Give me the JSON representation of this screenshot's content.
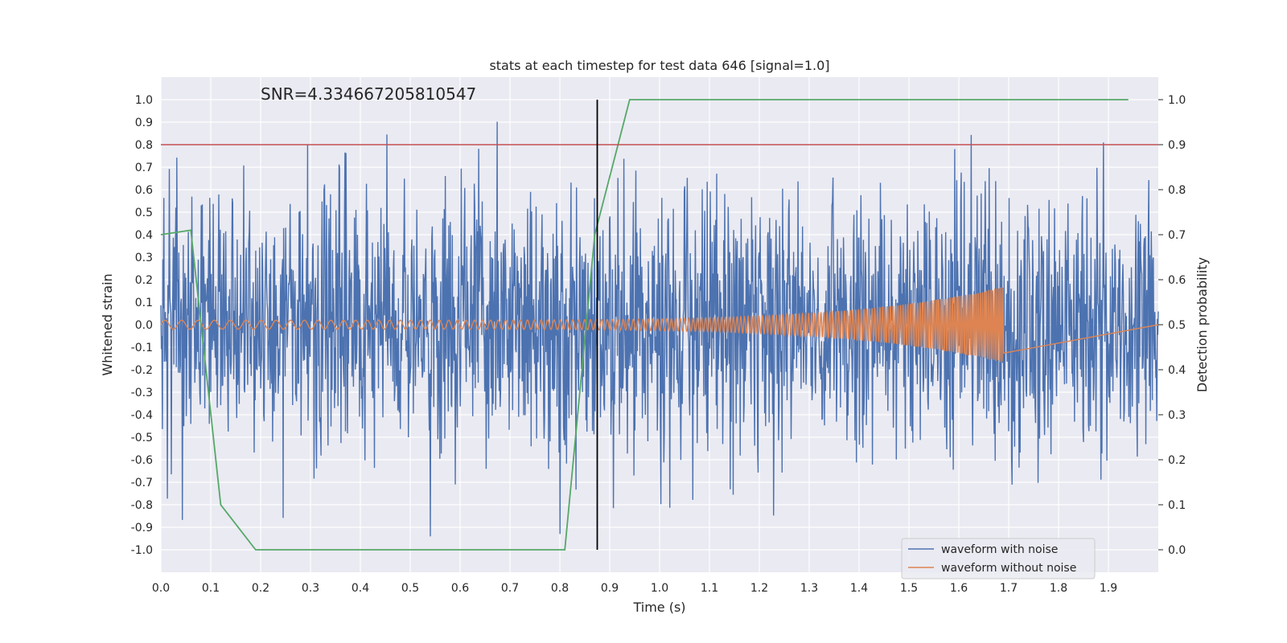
{
  "chart_data": {
    "type": "line",
    "title": "stats at each timestep for test data 646 [signal=1.0]",
    "annotation": "SNR=4.334667205810547",
    "xlabel": "Time (s)",
    "ylabel_left": "Whitened strain",
    "ylabel_right": "Detection probability",
    "xlim": [
      0.0,
      2.0
    ],
    "ylim_left": [
      -1.1,
      1.1
    ],
    "ylim_right": [
      -0.05,
      1.05
    ],
    "x_ticks": [
      "0.0",
      "0.1",
      "0.2",
      "0.3",
      "0.4",
      "0.5",
      "0.6",
      "0.7",
      "0.8",
      "0.9",
      "1.0",
      "1.1",
      "1.2",
      "1.3",
      "1.4",
      "1.5",
      "1.6",
      "1.7",
      "1.8",
      "1.9"
    ],
    "y_ticks_left": [
      "-1.0",
      "-0.9",
      "-0.8",
      "-0.7",
      "-0.6",
      "-0.5",
      "-0.4",
      "-0.3",
      "-0.2",
      "-0.1",
      "0.0",
      "0.1",
      "0.2",
      "0.3",
      "0.4",
      "0.5",
      "0.6",
      "0.7",
      "0.8",
      "0.9",
      "1.0"
    ],
    "y_ticks_right": [
      "0.0",
      "0.1",
      "0.2",
      "0.3",
      "0.4",
      "0.5",
      "0.6",
      "0.7",
      "0.8",
      "0.9",
      "1.0"
    ],
    "grid": true,
    "legend_position": "bottom-right",
    "series": [
      {
        "name": "waveform with noise",
        "axis": "left",
        "color": "#4c72b0",
        "kind": "noise",
        "t_range": [
          0.0,
          2.0
        ],
        "amplitude_std": 0.3,
        "peak_max": 1.0,
        "peak_min": -1.0
      },
      {
        "name": "waveform without noise",
        "axis": "left",
        "color": "#dd8452",
        "kind": "chirp",
        "t_range": [
          0.0,
          1.69
        ],
        "amplitude_start": 0.02,
        "amplitude_end": 0.17,
        "frequency_start_hz": 30,
        "frequency_end_hz": 250
      },
      {
        "axis": "right",
        "color": "#55a868",
        "x": [
          0.0,
          0.06,
          0.12,
          0.19,
          0.75,
          0.81,
          0.87,
          0.94,
          1.94
        ],
        "y": [
          0.7,
          0.71,
          0.1,
          0.0,
          0.0,
          0.0,
          0.7,
          1.0,
          1.0
        ]
      }
    ],
    "threshold_line": {
      "axis": "right",
      "value": 0.9,
      "color": "#c44e52"
    },
    "marker_line": {
      "x": 0.875,
      "y_range_right": [
        0.0,
        1.0
      ],
      "color": "#000000"
    }
  }
}
